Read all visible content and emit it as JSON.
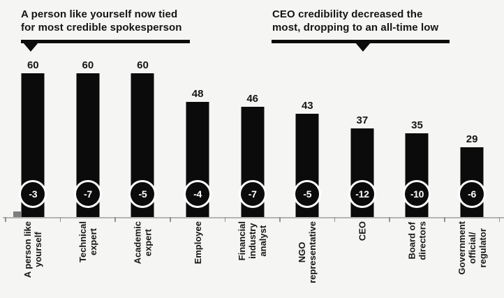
{
  "annotations": {
    "left": {
      "text": "A person like yourself now tied\nfor most credible spokesperson"
    },
    "right": {
      "text": "CEO credibility decreased the\nmost, dropping to an all-time low"
    }
  },
  "chart_data": {
    "type": "bar",
    "title": "",
    "xlabel": "",
    "ylabel": "",
    "ylim": [
      0,
      65
    ],
    "grid": false,
    "legend_position": "none",
    "categories": [
      "A person like yourself",
      "Technical expert",
      "Academic expert",
      "Employee",
      "Financial industry analyst",
      "NGO representative",
      "CEO",
      "Board of directors",
      "Government official/regulator"
    ],
    "categories_display": [
      "A person like\nyourself",
      "Technical\nexpert",
      "Academic\nexpert",
      "Employee",
      "Financial\nindustry\nanalyst",
      "NGO\nrepresentative",
      "CEO",
      "Board of\ndirectors",
      "Government\nofficial/\nregulator"
    ],
    "series": [
      {
        "name": "credibility_percent",
        "values": [
          60,
          60,
          60,
          48,
          46,
          43,
          37,
          35,
          29
        ]
      },
      {
        "name": "year_over_year_change",
        "values": [
          -3,
          -7,
          -5,
          -4,
          -7,
          -5,
          -12,
          -10,
          -6
        ]
      }
    ],
    "annotations": [
      {
        "text": "A person like yourself now tied for most credible spokesperson",
        "points_to": "A person like yourself"
      },
      {
        "text": "CEO credibility decreased the most, dropping to an all-time low",
        "points_to": "CEO"
      }
    ]
  },
  "colors": {
    "bg": "#f5f5f4",
    "bar": "#0b0b0b",
    "text": "#141414",
    "badge_bg": "#0b0b0b",
    "badge_text": "#ffffff",
    "badge_ring": "#ffffff",
    "axis_line": "#b5b5b5",
    "tick": "#909090",
    "artifact": "#7e7e7e"
  }
}
